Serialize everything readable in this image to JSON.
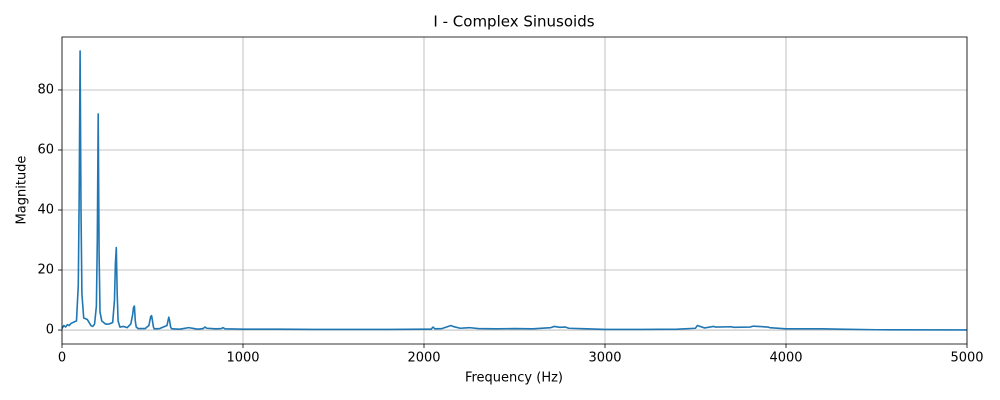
{
  "chart_data": {
    "type": "line",
    "title": "I - Complex Sinusoids",
    "x_label": "Frequency (Hz)",
    "y_label": "Magnitude",
    "color": "#1f77b4",
    "grid": true,
    "xlim": [
      0,
      5000
    ],
    "xticks": [
      0,
      1000,
      2000,
      3000,
      4000,
      5000
    ],
    "ylim": [
      -4.65,
      97.65
    ],
    "yticks": [
      0,
      20,
      40,
      60,
      80
    ],
    "x": [
      0,
      10,
      20,
      30,
      40,
      50,
      60,
      70,
      80,
      90,
      95,
      100,
      105,
      110,
      120,
      140,
      160,
      170,
      180,
      190,
      195,
      200,
      205,
      210,
      220,
      240,
      260,
      280,
      290,
      295,
      300,
      305,
      310,
      320,
      340,
      360,
      380,
      390,
      395,
      400,
      405,
      410,
      420,
      460,
      480,
      490,
      495,
      500,
      505,
      510,
      540,
      580,
      590,
      595,
      600,
      605,
      610,
      650,
      700,
      750,
      780,
      790,
      800,
      850,
      880,
      890,
      900,
      1000,
      1200,
      1400,
      1600,
      1800,
      2000,
      2040,
      2050,
      2060,
      2100,
      2150,
      2160,
      2200,
      2250,
      2300,
      2400,
      2500,
      2600,
      2700,
      2720,
      2750,
      2780,
      2800,
      2900,
      3000,
      3200,
      3400,
      3500,
      3510,
      3550,
      3600,
      3610,
      3700,
      3710,
      3800,
      3820,
      3900,
      3910,
      4000,
      4200,
      4300,
      4500,
      5000
    ],
    "values": [
      0.5,
      1.5,
      1.0,
      1.8,
      1.5,
      2.2,
      2.5,
      2.8,
      3.0,
      15,
      45,
      93,
      40,
      12,
      4,
      3.5,
      1.5,
      1.2,
      2.0,
      8,
      30,
      72,
      25,
      6,
      3,
      2,
      2,
      2.5,
      10,
      22,
      27.5,
      12,
      3,
      1,
      1.2,
      0.8,
      2,
      5,
      7.5,
      8,
      3,
      1,
      0.5,
      0.5,
      1.5,
      4.5,
      4.8,
      3,
      1,
      0.4,
      0.5,
      1.5,
      4.3,
      3,
      1,
      0.5,
      0.4,
      0.3,
      0.8,
      0.3,
      0.5,
      1.0,
      0.6,
      0.4,
      0.5,
      0.8,
      0.4,
      0.3,
      0.3,
      0.2,
      0.2,
      0.2,
      0.3,
      0.3,
      1.0,
      0.4,
      0.5,
      1.5,
      1.2,
      0.6,
      0.8,
      0.5,
      0.4,
      0.5,
      0.4,
      0.8,
      1.2,
      0.9,
      1.0,
      0.6,
      0.4,
      0.2,
      0.2,
      0.3,
      0.6,
      1.5,
      0.7,
      1.2,
      1.0,
      1.1,
      0.9,
      1.0,
      1.3,
      1.0,
      0.8,
      0.4,
      0.4,
      0.3,
      0.1,
      0.05
    ]
  }
}
